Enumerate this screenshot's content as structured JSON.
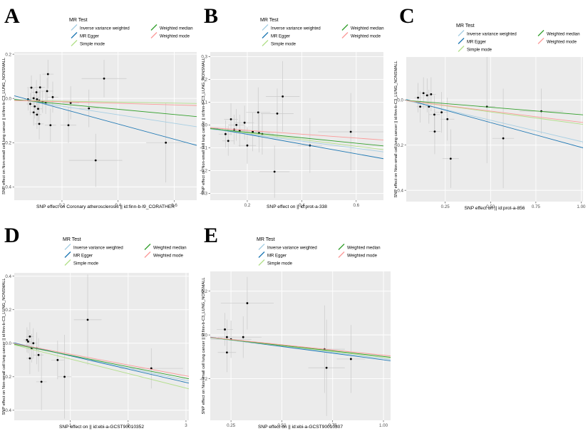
{
  "figure": {
    "background": "#ffffff",
    "panel_bg": "#ebebeb",
    "grid_color": "#ffffff",
    "point_color": "#000000",
    "errorbar_color": "#c9c9c9",
    "tick_label_color": "#4d4d4d",
    "axis_label_color": "#000000",
    "legend_title": "MR Test",
    "legend_items": [
      {
        "label": "Inverse variance weighted",
        "color": "#a6cee3"
      },
      {
        "label": "MR Egger",
        "color": "#1f78b4"
      },
      {
        "label": "Simple mode",
        "color": "#b2df8a"
      },
      {
        "label": "Weighted median",
        "color": "#33a02c"
      },
      {
        "label": "Weighted mode",
        "color": "#fb9a99"
      }
    ]
  },
  "chart_data": [
    {
      "type": "scatter",
      "label": "A",
      "xlabel": "SNP effect on Coronary atherosclerosis || id:finn-b-I9_CORATHER",
      "ylabel": "SNP effect on Non-small cell lung cancer || id:finn-b-C3_LUNG_NONSMALL",
      "xlim": [
        0.03,
        0.68
      ],
      "ylim": [
        -0.46,
        0.21
      ],
      "xticks": [
        0.2,
        0.4,
        0.6
      ],
      "xtick_labels": [
        "0.2",
        "0.4",
        "0.6"
      ],
      "yticks": [
        0.2,
        0.0,
        -0.2,
        -0.4
      ],
      "ytick_labels": [
        "0.2",
        "0.0",
        "-0.2",
        "-0.4"
      ],
      "grid": true,
      "legend_position": "top",
      "points": [
        [
          0.15,
          0.11,
          0.02,
          0.065
        ],
        [
          0.122,
          0.05,
          0.018,
          0.06
        ],
        [
          0.091,
          0.049,
          0.015,
          0.055
        ],
        [
          0.109,
          0.028,
          0.015,
          0.055
        ],
        [
          0.147,
          0.033,
          0.022,
          0.06
        ],
        [
          0.167,
          0.006,
          0.02,
          0.07
        ],
        [
          0.079,
          -0.004,
          0.012,
          0.05
        ],
        [
          0.099,
          0.001,
          0.012,
          0.045
        ],
        [
          0.111,
          -0.004,
          0.012,
          0.045
        ],
        [
          0.119,
          -0.01,
          0.014,
          0.045
        ],
        [
          0.131,
          -0.015,
          0.015,
          0.05
        ],
        [
          0.142,
          -0.02,
          0.016,
          0.05
        ],
        [
          0.087,
          -0.025,
          0.013,
          0.05
        ],
        [
          0.103,
          -0.036,
          0.014,
          0.055
        ],
        [
          0.115,
          -0.047,
          0.014,
          0.055
        ],
        [
          0.099,
          -0.063,
          0.014,
          0.06
        ],
        [
          0.111,
          -0.073,
          0.015,
          0.065
        ],
        [
          0.231,
          -0.02,
          0.03,
          0.075
        ],
        [
          0.296,
          -0.045,
          0.035,
          0.085
        ],
        [
          0.119,
          -0.115,
          0.016,
          0.07
        ],
        [
          0.159,
          -0.121,
          0.02,
          0.075
        ],
        [
          0.223,
          -0.121,
          0.028,
          0.08
        ],
        [
          0.35,
          0.09,
          0.08,
          0.085
        ],
        [
          0.32,
          -0.28,
          0.095,
          0.12
        ],
        [
          0.57,
          -0.2,
          0.07,
          0.18
        ]
      ],
      "lines": [
        {
          "method": "Inverse variance weighted",
          "x": [
            0.03,
            0.68
          ],
          "y": [
            -0.002,
            -0.128
          ]
        },
        {
          "method": "MR Egger",
          "x": [
            0.03,
            0.68
          ],
          "y": [
            0.012,
            -0.212
          ]
        },
        {
          "method": "Simple mode",
          "x": [
            0.03,
            0.68
          ],
          "y": [
            -0.008,
            -0.023
          ]
        },
        {
          "method": "Weighted median",
          "x": [
            0.03,
            0.68
          ],
          "y": [
            -0.005,
            -0.082
          ]
        },
        {
          "method": "Weighted mode",
          "x": [
            0.03,
            0.68
          ],
          "y": [
            -0.009,
            -0.032
          ]
        }
      ]
    },
    {
      "type": "scatter",
      "label": "B",
      "xlabel": "SNP effect on  || id:prot-a-338",
      "ylabel": "SNP effect on Non-small cell lung cancer || id:finn-b-C3_LUNG_NONSMALL",
      "xlim": [
        0.064,
        0.7
      ],
      "ylim": [
        -0.33,
        0.32
      ],
      "xticks": [
        0.2,
        0.4,
        0.6
      ],
      "xtick_labels": [
        "0.2",
        "0.4",
        "0.6"
      ],
      "yticks": [
        0.3,
        0.2,
        0.1,
        0.0,
        -0.1,
        -0.2,
        -0.3
      ],
      "ytick_labels": [
        "0.3",
        "0.2",
        "0.1",
        "0.0",
        "-0.1",
        "-0.2",
        "-0.3"
      ],
      "grid": true,
      "legend_position": "top",
      "points": [
        [
          0.12,
          -0.04,
          0.025,
          0.06
        ],
        [
          0.13,
          -0.07,
          0.022,
          0.065
        ],
        [
          0.14,
          0.025,
          0.025,
          0.07
        ],
        [
          0.152,
          -0.02,
          0.028,
          0.065
        ],
        [
          0.16,
          0.0,
          0.03,
          0.07
        ],
        [
          0.172,
          -0.025,
          0.03,
          0.07
        ],
        [
          0.19,
          0.01,
          0.035,
          0.075
        ],
        [
          0.2,
          -0.09,
          0.032,
          0.08
        ],
        [
          0.22,
          -0.03,
          0.038,
          0.085
        ],
        [
          0.24,
          0.055,
          0.045,
          0.11
        ],
        [
          0.243,
          -0.035,
          0.04,
          0.085
        ],
        [
          0.255,
          -0.04,
          0.042,
          0.09
        ],
        [
          0.31,
          0.05,
          0.06,
          0.11
        ],
        [
          0.3,
          -0.205,
          0.055,
          0.115
        ],
        [
          0.33,
          0.125,
          0.062,
          0.155
        ],
        [
          0.43,
          -0.09,
          0.045,
          0.12
        ],
        [
          0.58,
          -0.03,
          0.12,
          0.17
        ]
      ],
      "lines": [
        {
          "method": "Inverse variance weighted",
          "x": [
            0.064,
            0.7
          ],
          "y": [
            -0.018,
            -0.118
          ]
        },
        {
          "method": "MR Egger",
          "x": [
            0.064,
            0.7
          ],
          "y": [
            -0.012,
            -0.148
          ]
        },
        {
          "method": "Simple mode",
          "x": [
            0.064,
            0.7
          ],
          "y": [
            -0.015,
            -0.108
          ]
        },
        {
          "method": "Weighted median",
          "x": [
            0.064,
            0.7
          ],
          "y": [
            -0.016,
            -0.092
          ]
        },
        {
          "method": "Weighted mode",
          "x": [
            0.064,
            0.7
          ],
          "y": [
            -0.012,
            -0.066
          ]
        }
      ]
    },
    {
      "type": "scatter",
      "label": "C",
      "xlabel": "SNP effect on  || id:prot-a-856",
      "ylabel": "SNP effect on Non-small cell lung cancer || id:finn-b-C3_LUNG_NONSMALL",
      "xlim": [
        0.035,
        1.01
      ],
      "ylim": [
        -0.45,
        0.19
      ],
      "xticks": [
        0.25,
        0.5,
        0.75,
        1.0
      ],
      "xtick_labels": [
        "0.25",
        "0.50",
        "0.75",
        "1.00"
      ],
      "yticks": [
        0.0,
        -0.2,
        -0.4
      ],
      "ytick_labels": [
        "0.0",
        "-0.2",
        "-0.4"
      ],
      "grid": true,
      "legend_position": "top",
      "points": [
        [
          0.1,
          0.01,
          0.02,
          0.065
        ],
        [
          0.112,
          -0.03,
          0.02,
          0.07
        ],
        [
          0.13,
          0.03,
          0.022,
          0.07
        ],
        [
          0.15,
          0.02,
          0.025,
          0.075
        ],
        [
          0.16,
          -0.03,
          0.025,
          0.075
        ],
        [
          0.172,
          0.025,
          0.026,
          0.075
        ],
        [
          0.19,
          -0.065,
          0.03,
          0.085
        ],
        [
          0.23,
          -0.055,
          0.035,
          0.09
        ],
        [
          0.262,
          -0.085,
          0.038,
          0.095
        ],
        [
          0.192,
          -0.14,
          0.032,
          0.1
        ],
        [
          0.28,
          -0.26,
          0.045,
          0.13
        ],
        [
          0.48,
          -0.03,
          0.045,
          0.25
        ],
        [
          0.57,
          -0.17,
          0.06,
          0.22
        ],
        [
          0.78,
          -0.05,
          0.12,
          0.1
        ]
      ],
      "lines": [
        {
          "method": "Inverse variance weighted",
          "x": [
            0.035,
            1.01
          ],
          "y": [
            -0.002,
            -0.186
          ]
        },
        {
          "method": "MR Egger",
          "x": [
            0.035,
            1.01
          ],
          "y": [
            0.002,
            -0.212
          ]
        },
        {
          "method": "Simple mode",
          "x": [
            0.035,
            1.01
          ],
          "y": [
            -0.003,
            -0.108
          ]
        },
        {
          "method": "Weighted median",
          "x": [
            0.035,
            1.01
          ],
          "y": [
            -0.002,
            -0.066
          ]
        },
        {
          "method": "Weighted mode",
          "x": [
            0.035,
            1.01
          ],
          "y": [
            -0.003,
            -0.1
          ]
        }
      ]
    },
    {
      "type": "scatter",
      "label": "D",
      "xlabel": "SNP effect on  || id:ebi-a-GCST90010352",
      "ylabel": "SNP effect on Non-small cell lung cancer || id:finn-b-C3_LUNG_NONSMALL",
      "xlim": [
        0.03,
        3.05
      ],
      "ylim": [
        -0.46,
        0.42
      ],
      "xticks": [
        1,
        2,
        3
      ],
      "xtick_labels": [
        "1",
        "2",
        "3"
      ],
      "yticks": [
        0.4,
        0.2,
        0.0,
        -0.2,
        -0.4
      ],
      "ytick_labels": [
        "0.4",
        "0.2",
        "0.0",
        "-0.2",
        "-0.4"
      ],
      "grid": true,
      "legend_position": "top",
      "points": [
        [
          0.25,
          0.02,
          0.06,
          0.075
        ],
        [
          0.27,
          0.01,
          0.055,
          0.07
        ],
        [
          0.3,
          0.04,
          0.065,
          0.085
        ],
        [
          0.33,
          -0.03,
          0.07,
          0.085
        ],
        [
          0.36,
          0.0,
          0.07,
          0.09
        ],
        [
          0.3,
          -0.09,
          0.06,
          0.095
        ],
        [
          0.42,
          -0.03,
          0.08,
          0.095
        ],
        [
          0.45,
          -0.07,
          0.085,
          0.1
        ],
        [
          0.5,
          -0.23,
          0.09,
          0.17
        ],
        [
          0.78,
          -0.1,
          0.11,
          0.115
        ],
        [
          0.9,
          -0.2,
          0.12,
          0.25
        ],
        [
          1.3,
          0.14,
          0.24,
          0.27
        ],
        [
          2.4,
          -0.15,
          0.55,
          0.12
        ]
      ],
      "lines": [
        {
          "method": "Inverse variance weighted",
          "x": [
            0.03,
            3.05
          ],
          "y": [
            -0.004,
            -0.225
          ]
        },
        {
          "method": "MR Egger",
          "x": [
            0.03,
            3.05
          ],
          "y": [
            0.002,
            -0.238
          ]
        },
        {
          "method": "Simple mode",
          "x": [
            0.03,
            3.05
          ],
          "y": [
            -0.01,
            -0.272
          ]
        },
        {
          "method": "Weighted median",
          "x": [
            0.03,
            3.05
          ],
          "y": [
            -0.006,
            -0.212
          ]
        },
        {
          "method": "Weighted mode",
          "x": [
            0.03,
            3.05
          ],
          "y": [
            -0.002,
            -0.198
          ]
        }
      ]
    },
    {
      "type": "scatter",
      "label": "E",
      "xlabel": "SNP effect on  || id:ebi-a-GCST90010307",
      "ylabel": "SNP effect on Non-small cell lung cancer || id:finn-b-C3_LUNG_NONSMALL",
      "xlim": [
        0.148,
        1.035
      ],
      "ylim": [
        -0.39,
        0.29
      ],
      "xticks": [
        0.25,
        0.5,
        0.75,
        1.0
      ],
      "xtick_labels": [
        "0.25",
        "0.50",
        "0.75",
        "1.00"
      ],
      "yticks": [
        0.2,
        0.0,
        -0.2
      ],
      "ytick_labels": [
        "0.2",
        "0.0",
        "-0.2"
      ],
      "grid": true,
      "legend_position": "top",
      "points": [
        [
          0.22,
          0.025,
          0.04,
          0.075
        ],
        [
          0.23,
          -0.01,
          0.045,
          0.08
        ],
        [
          0.25,
          -0.02,
          0.1,
          0.085
        ],
        [
          0.23,
          -0.08,
          0.045,
          0.09
        ],
        [
          0.31,
          -0.01,
          0.09,
          0.095
        ],
        [
          0.33,
          0.145,
          0.13,
          0.12
        ],
        [
          0.71,
          -0.065,
          0.1,
          0.2
        ],
        [
          0.72,
          -0.15,
          0.09,
          0.22
        ],
        [
          0.84,
          -0.11,
          0.07,
          0.155
        ]
      ],
      "lines": [
        {
          "method": "Inverse variance weighted",
          "x": [
            0.148,
            1.035
          ],
          "y": [
            -0.013,
            -0.112
          ]
        },
        {
          "method": "MR Egger",
          "x": [
            0.148,
            1.035
          ],
          "y": [
            -0.01,
            -0.118
          ]
        },
        {
          "method": "Simple mode",
          "x": [
            0.148,
            1.035
          ],
          "y": [
            -0.012,
            -0.106
          ]
        },
        {
          "method": "Weighted median",
          "x": [
            0.148,
            1.035
          ],
          "y": [
            -0.012,
            -0.102
          ]
        },
        {
          "method": "Weighted mode",
          "x": [
            0.148,
            1.035
          ],
          "y": [
            -0.011,
            -0.096
          ]
        }
      ]
    }
  ]
}
